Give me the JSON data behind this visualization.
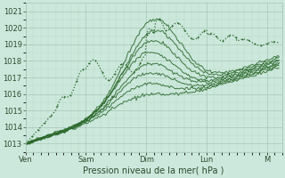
{
  "bg_color": "#cce8dc",
  "grid_color_major": "#a8c8b8",
  "grid_color_minor": "#b8d8c8",
  "line_color": "#2d6a2d",
  "ylabel": "Pression niveau de la mer( hPa )",
  "ylim": [
    1012.5,
    1021.5
  ],
  "yticks": [
    1013,
    1014,
    1015,
    1016,
    1017,
    1018,
    1019,
    1020,
    1021
  ],
  "xlabels": [
    "Ven",
    "Sam",
    "Dim",
    "Lun",
    "M"
  ],
  "x_days": [
    0,
    1,
    2,
    3,
    4
  ],
  "tick_fontsize": 6,
  "label_fontsize": 7
}
